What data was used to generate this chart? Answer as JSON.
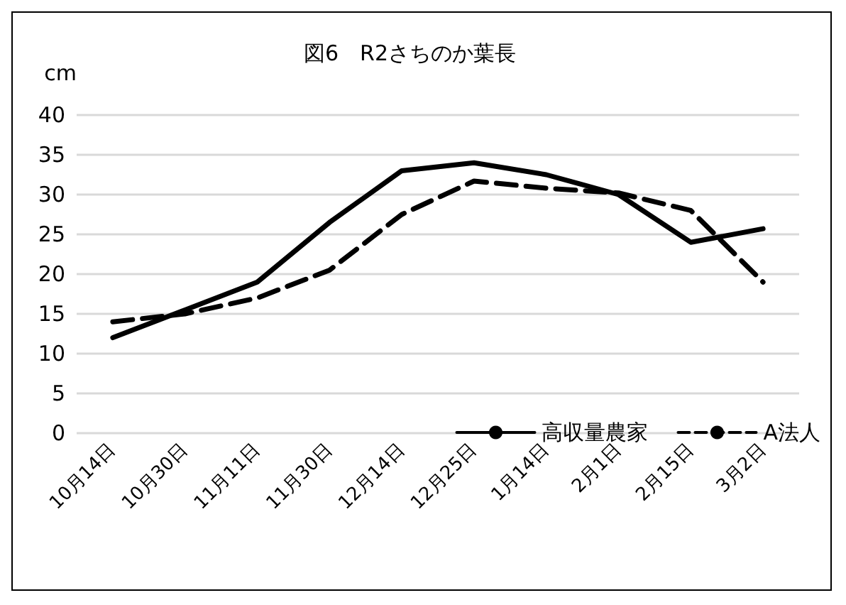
{
  "chart_data": {
    "type": "line",
    "title": "図6　R2さちのか葉長",
    "ylabel": "cm",
    "categories": [
      "10月14日",
      "10月30日",
      "11月11日",
      "11月30日",
      "12月14日",
      "12月25日",
      "1月14日",
      "2月1日",
      "2月15日",
      "3月2日"
    ],
    "series": [
      {
        "name": "高収量農家",
        "color": "#000000",
        "line_style": "solid",
        "values": [
          12,
          15.5,
          19,
          26.5,
          33,
          34,
          32.5,
          30,
          24,
          25.7
        ]
      },
      {
        "name": "A法人",
        "color": "#000000",
        "line_style": "dashed",
        "values": [
          14,
          15,
          17,
          20.5,
          27.5,
          31.7,
          30.8,
          30.2,
          28,
          19
        ]
      }
    ],
    "ylim": [
      0,
      40
    ],
    "yticks": [
      0,
      5,
      10,
      15,
      20,
      25,
      30,
      35,
      40
    ],
    "grid": "y",
    "legend": "bottom right",
    "marker": "none"
  }
}
